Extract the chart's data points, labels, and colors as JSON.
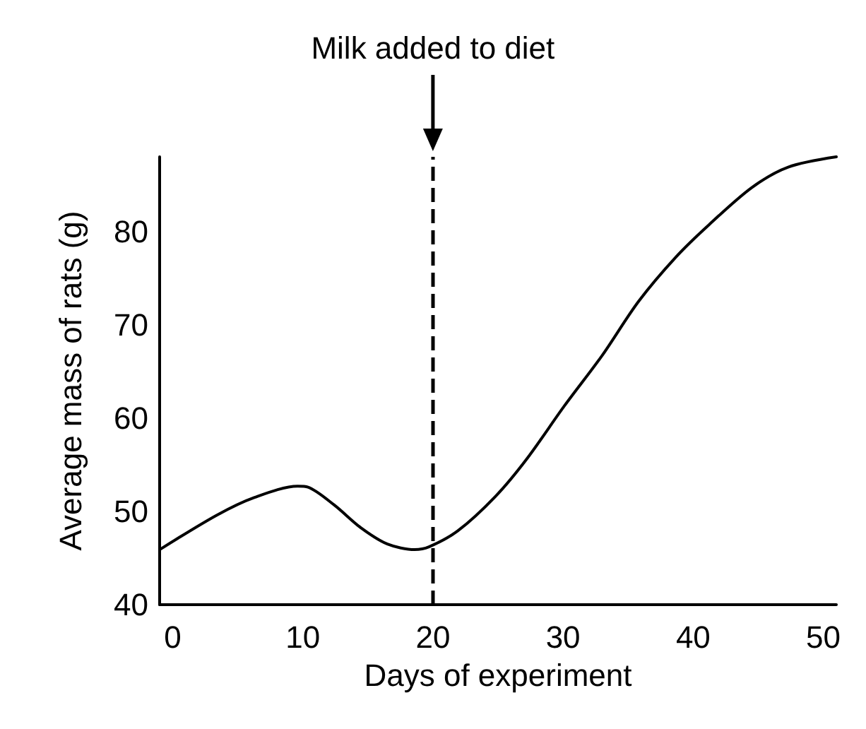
{
  "chart_data": {
    "type": "line",
    "xlabel": "Days of experiment",
    "ylabel": "Average mass of rats (g)",
    "xlim": [
      -1,
      51
    ],
    "ylim": [
      40,
      88
    ],
    "xticks": [
      0,
      10,
      20,
      30,
      40,
      50
    ],
    "yticks": [
      40,
      50,
      60,
      70,
      80
    ],
    "grid": false,
    "marker": "none",
    "line_style": "solid",
    "series": [
      {
        "color": "#000000",
        "x": [
          -1,
          3.4,
          6.3,
          9.6,
          10.4,
          12.4,
          14.5,
          16.5,
          18.6,
          19.7,
          21.9,
          24.8,
          27.2,
          30.1,
          33,
          35.8,
          38.7,
          41.2,
          44.5,
          47.3,
          51
        ],
        "values": [
          45.9,
          49.6,
          51.5,
          52.7,
          52.6,
          50.7,
          48.2,
          46.5,
          45.9,
          46.2,
          47.9,
          51.6,
          55.6,
          61.3,
          66.7,
          72.5,
          77.3,
          80.7,
          84.7,
          86.9,
          88
        ]
      }
    ],
    "ref_lines": [
      {
        "axis": "x",
        "value": 20,
        "label": "Milk added to diet",
        "color": "#000000",
        "line_style": "dashed"
      }
    ]
  }
}
